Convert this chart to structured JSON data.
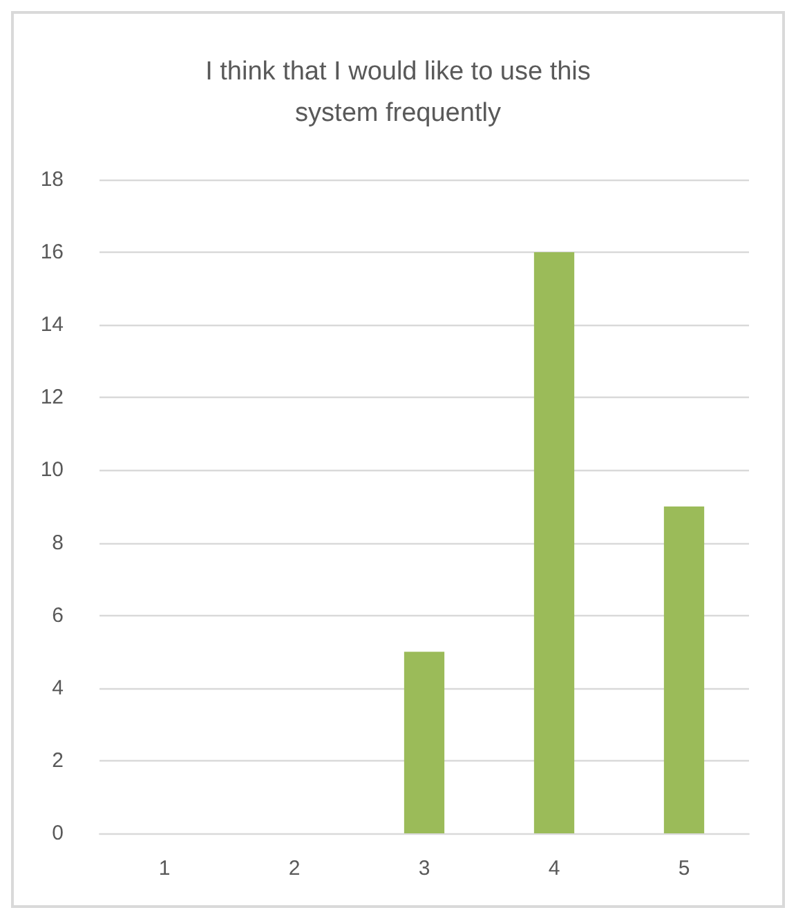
{
  "chart_data": {
    "type": "bar",
    "title": "I think that I would like to use this\nsystem frequently",
    "categories": [
      "1",
      "2",
      "3",
      "4",
      "5"
    ],
    "values": [
      0,
      0,
      5,
      16,
      9
    ],
    "color": "#9bbb59",
    "ylim": [
      0,
      18
    ],
    "yticks": [
      0,
      2,
      4,
      6,
      8,
      10,
      12,
      14,
      16,
      18
    ],
    "grid": "y"
  }
}
